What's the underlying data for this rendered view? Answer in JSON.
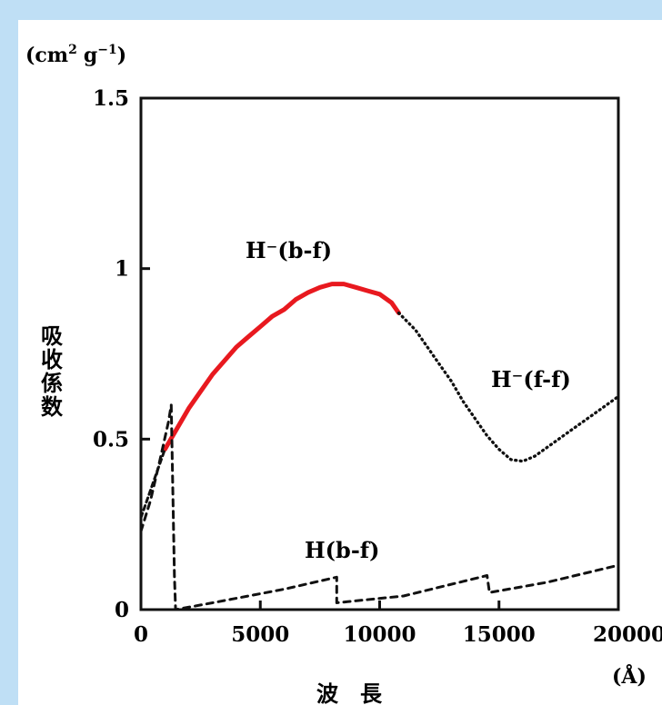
{
  "colors": {
    "background": "#bfdff5",
    "panel": "#ffffff",
    "highlight": "#e8191f",
    "ink": "#111111"
  },
  "axis": {
    "y_unit_left": "(cm",
    "y_unit_sup1": "2",
    "y_unit_mid": "g",
    "y_unit_sup2": "−1",
    "y_unit_right": ")",
    "y_title": "吸收係数",
    "x_title": "波　長",
    "x_unit": "(Å)"
  },
  "chart_data": {
    "type": "line",
    "xlim": [
      0,
      20000
    ],
    "ylim": [
      0,
      1.5
    ],
    "x_ticks": [
      {
        "value": 0,
        "label": "0"
      },
      {
        "value": 5000,
        "label": "5000"
      },
      {
        "value": 10000,
        "label": "10000"
      },
      {
        "value": 15000,
        "label": "15000"
      },
      {
        "value": 20000,
        "label": "20000"
      }
    ],
    "y_ticks": [
      {
        "value": 0,
        "label": "0"
      },
      {
        "value": 0.5,
        "label": "0.5"
      },
      {
        "value": 1.0,
        "label": "1"
      },
      {
        "value": 1.5,
        "label": "1.5"
      }
    ],
    "series": [
      {
        "name": "H⁻(b-f)",
        "style": "solid-highlight",
        "color": "#e8191f",
        "x": [
          1000,
          1500,
          2000,
          2500,
          3000,
          3500,
          4000,
          4500,
          5000,
          5500,
          6000,
          6500,
          7000,
          7500,
          8000,
          8500,
          9000,
          9500,
          10000,
          10500,
          10800
        ],
        "y": [
          0.47,
          0.53,
          0.59,
          0.64,
          0.69,
          0.73,
          0.77,
          0.8,
          0.83,
          0.86,
          0.88,
          0.91,
          0.93,
          0.945,
          0.955,
          0.955,
          0.945,
          0.935,
          0.925,
          0.9,
          0.87
        ]
      },
      {
        "name": "H⁻(f-f)",
        "style": "dotted",
        "color": "#111111",
        "x": [
          10800,
          11500,
          12000,
          12500,
          13000,
          13500,
          14000,
          14500,
          15000,
          15500,
          16000,
          16500,
          17000,
          17500,
          18000,
          18500,
          19000,
          19500,
          20000
        ],
        "y": [
          0.87,
          0.82,
          0.77,
          0.72,
          0.67,
          0.61,
          0.56,
          0.51,
          0.47,
          0.44,
          0.435,
          0.45,
          0.475,
          0.5,
          0.525,
          0.55,
          0.575,
          0.6,
          0.625
        ]
      },
      {
        "name": "",
        "style": "short-dashed",
        "color": "#111111",
        "x": [
          0,
          250,
          500,
          750,
          1000
        ],
        "y": [
          0.27,
          0.32,
          0.37,
          0.42,
          0.47
        ]
      },
      {
        "name": "H(b-f)",
        "style": "dashed",
        "color": "#111111",
        "x": [
          0,
          400,
          800,
          1150,
          1270,
          1400,
          1450,
          3000,
          6000,
          8200,
          8200,
          11000,
          14500,
          14600,
          17000,
          20000
        ],
        "y": [
          0.23,
          0.32,
          0.44,
          0.55,
          0.6,
          0.1,
          0.0,
          0.02,
          0.06,
          0.095,
          0.02,
          0.04,
          0.1,
          0.05,
          0.08,
          0.13
        ]
      }
    ]
  }
}
